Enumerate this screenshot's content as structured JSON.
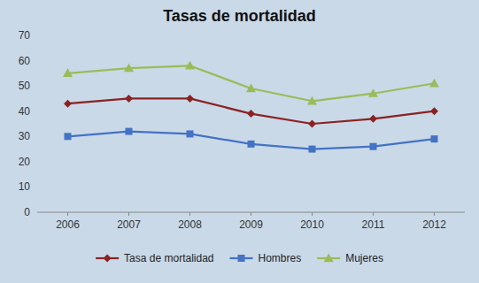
{
  "chart_data": {
    "type": "line",
    "title": "Tasas de mortalidad",
    "x": [
      2006,
      2007,
      2008,
      2009,
      2010,
      2011,
      2012
    ],
    "xlim": [
      2005.5,
      2012.5
    ],
    "xticks": [
      2006,
      2007,
      2008,
      2009,
      2010,
      2011,
      2012
    ],
    "ylim": [
      0,
      70
    ],
    "yticks": [
      0,
      10,
      20,
      30,
      40,
      50,
      60,
      70
    ],
    "grid": false,
    "legend": "bottom",
    "series": [
      {
        "name": "Tasa de mortalidad",
        "color": "#8B2222",
        "marker": "diamond",
        "values": [
          43,
          45,
          45,
          39,
          35,
          37,
          40
        ]
      },
      {
        "name": "Hombres",
        "color": "#4472C4",
        "marker": "square",
        "values": [
          30,
          32,
          31,
          27,
          25,
          26,
          29
        ]
      },
      {
        "name": "Mujeres",
        "color": "#9BBB59",
        "marker": "triangle",
        "values": [
          55,
          57,
          58,
          49,
          44,
          47,
          51
        ]
      }
    ]
  }
}
